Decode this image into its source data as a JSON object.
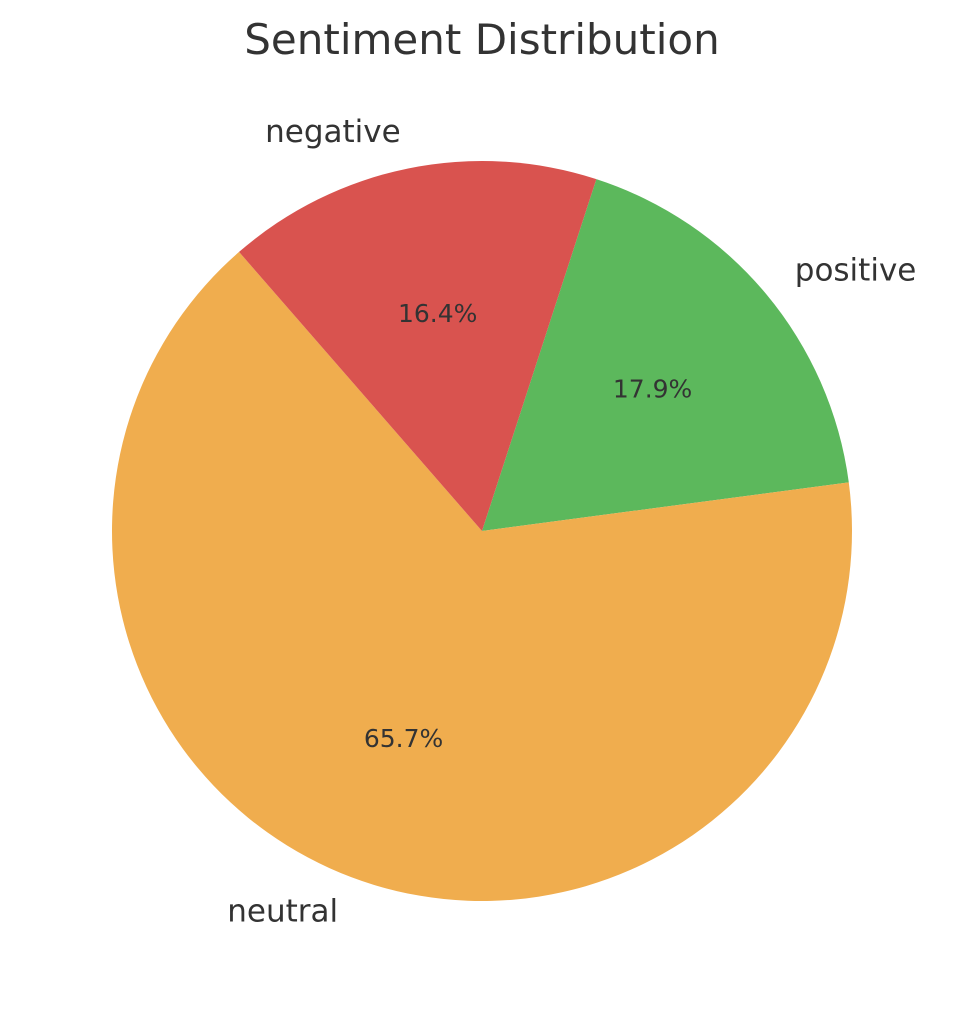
{
  "chart_data": {
    "type": "pie",
    "title": "Sentiment Distribution",
    "slices": [
      {
        "label": "positive",
        "value": 17.9,
        "pct_label": "17.9%",
        "color": "#5cb85c"
      },
      {
        "label": "neutral",
        "value": 65.7,
        "pct_label": "65.7%",
        "color": "#f0ad4e"
      },
      {
        "label": "negative",
        "value": 16.4,
        "pct_label": "16.4%",
        "color": "#d9534f"
      }
    ],
    "start_angle_deg": 72,
    "direction": "clockwise",
    "legend": "none"
  }
}
